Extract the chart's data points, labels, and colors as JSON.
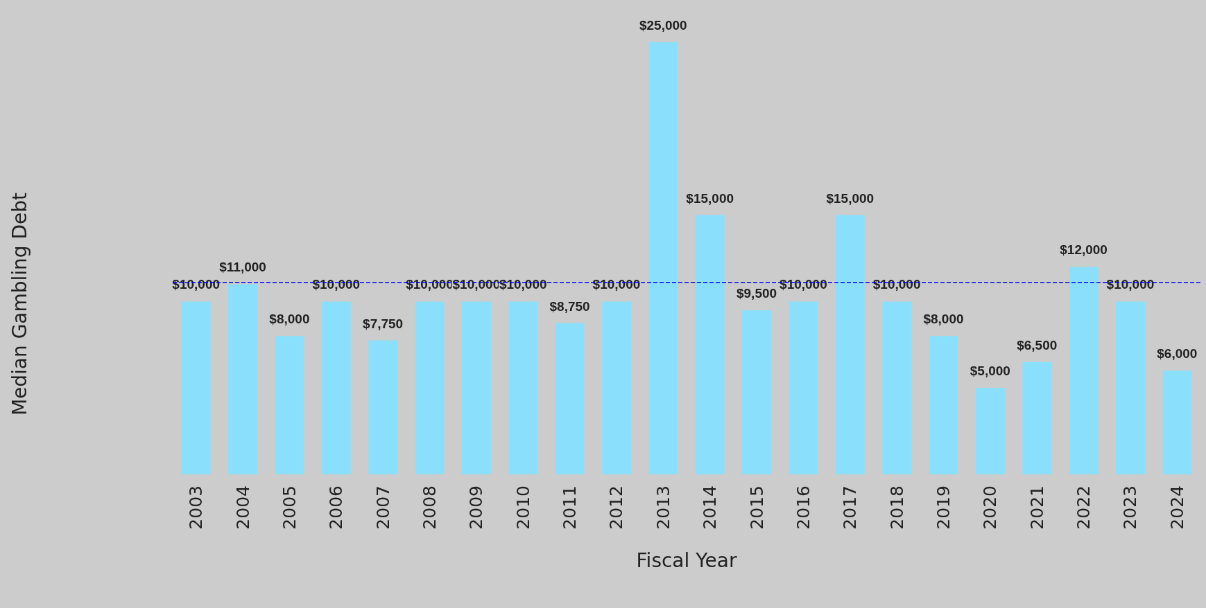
{
  "chart_data": {
    "type": "bar",
    "xlabel": "Fiscal Year",
    "annotations": [
      "Median Gambling Debt"
    ],
    "categories": [
      "2003",
      "2004",
      "2005",
      "2006",
      "2007",
      "2008",
      "2009",
      "2010",
      "2011",
      "2012",
      "2013",
      "2014",
      "2015",
      "2016",
      "2017",
      "2018",
      "2019",
      "2020",
      "2021",
      "2022",
      "2023",
      "2024"
    ],
    "values": [
      10000,
      11000,
      8000,
      10000,
      7750,
      10000,
      10000,
      10000,
      8750,
      10000,
      25000,
      15000,
      9500,
      10000,
      15000,
      10000,
      8000,
      5000,
      6500,
      12000,
      10000,
      6000
    ],
    "value_labels": [
      "$10,000",
      "$11,000",
      "$8,000",
      "$10,000",
      "$7,750",
      "$10,000",
      "$10,000",
      "$10,000",
      "$8,750",
      "$10,000",
      "$25,000",
      "$15,000",
      "$9,500",
      "$10,000",
      "$15,000",
      "$10,000",
      "$8,000",
      "$5,000",
      "$6,500",
      "$12,000",
      "$10,000",
      "$6,000"
    ],
    "color": "#8ae0fc",
    "ylim": [
      0,
      25000
    ],
    "tick_labels": "x",
    "grid": false,
    "ref_lines": [
      {
        "axis": "y",
        "value": 11100,
        "color": "#0000ff",
        "line_style": "dashed"
      }
    ]
  }
}
